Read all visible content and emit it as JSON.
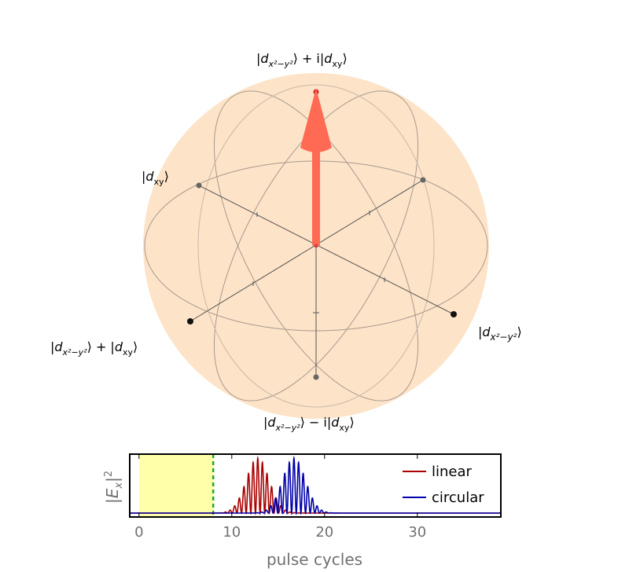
{
  "bloch": {
    "labels": {
      "top": {
        "pre": "|",
        "d": "d",
        "sub": "x²−y²",
        "post": "⟩ + i|",
        "d2": "d",
        "sub2": "xy",
        "end": "⟩"
      },
      "bottom": {
        "pre": "|",
        "d": "d",
        "sub": "x²−y²",
        "post": "⟩ − i|",
        "d2": "d",
        "sub2": "xy",
        "end": "⟩"
      },
      "back_left": {
        "pre": "|",
        "d": "d",
        "sub": "xy",
        "end": "⟩"
      },
      "front_right": {
        "pre": "|",
        "d": "d",
        "sub": "x²−y²",
        "end": "⟩"
      },
      "front_left": {
        "pre": "|",
        "d": "d",
        "sub": "x²−y²",
        "post": "⟩ + |",
        "d2": "d",
        "sub2": "xy",
        "end": "⟩"
      }
    },
    "sphere_color": "#fde3c7",
    "vector_color": "#ff6a55"
  },
  "chart_data": {
    "type": "line",
    "xlabel": "pulse cycles",
    "ylabel_core": "E",
    "ylabel_sub": "x",
    "ylabel_exp": "2",
    "xlim": [
      -1,
      39
    ],
    "xticks": [
      "0",
      "10",
      "20",
      "30"
    ],
    "xtick_values": [
      0,
      10,
      20,
      30
    ],
    "shaded_region": {
      "x": [
        0,
        8
      ],
      "color": "#ffffaa"
    },
    "marker_line": {
      "x": 8,
      "color": "#22aa22"
    },
    "series": [
      {
        "name": "linear",
        "color": "#aa0000",
        "center": 12.8,
        "width": 2.8,
        "cycles_per_unit": 2.0
      },
      {
        "name": "circular",
        "color": "#0000aa",
        "center": 16.7,
        "width": 2.8,
        "cycles_per_unit": 2.0
      }
    ],
    "legend_position": "top-right"
  }
}
